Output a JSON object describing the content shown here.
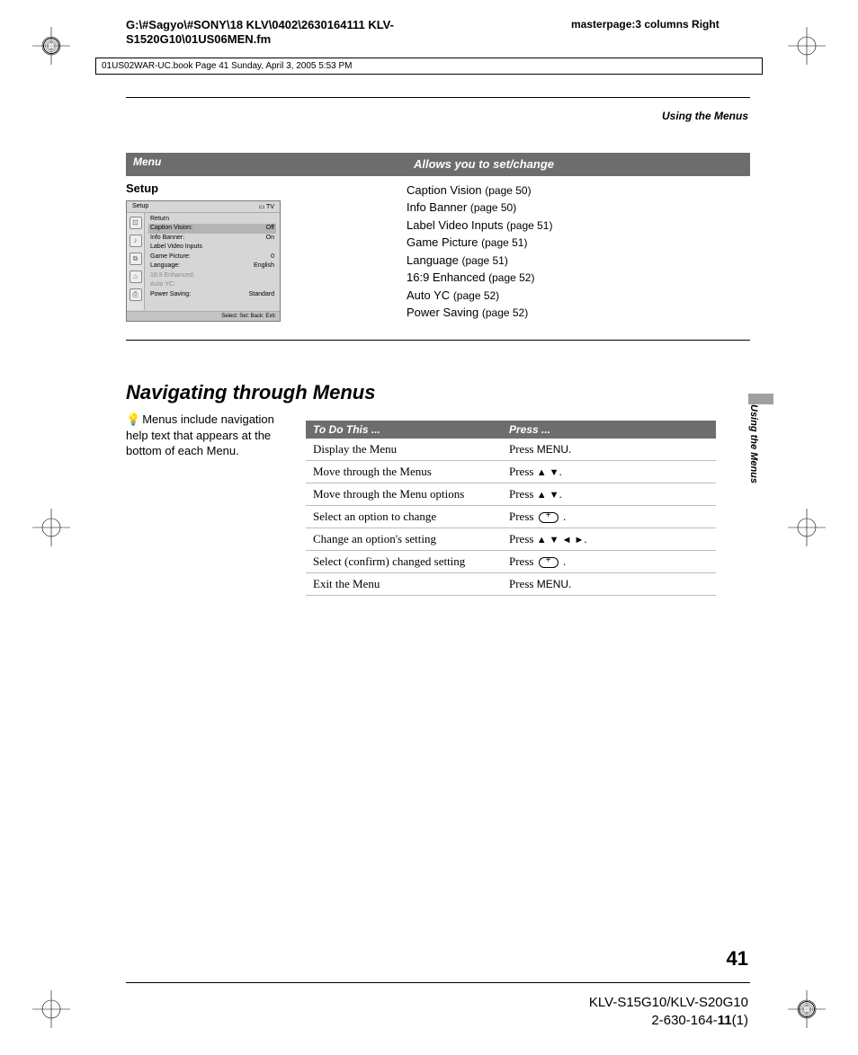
{
  "header": {
    "filepath": "G:\\#Sagyo\\#SONY\\18 KLV\\0402\\2630164111 KLV-S1520G10\\01US06MEN.fm",
    "masterpage": "masterpage:3 columns Right",
    "bookmeta": "01US02WAR-UC.book  Page 41  Sunday, April 3, 2005  5:53 PM"
  },
  "section_label": "Using the Menus",
  "table1": {
    "headers": {
      "c1": "Menu",
      "c2": "Allows you to set/change"
    },
    "setup_label": "Setup",
    "items": [
      {
        "name": "Caption Vision",
        "page": "(page 50)"
      },
      {
        "name": "Info Banner",
        "page": "(page 50)"
      },
      {
        "name": "Label Video Inputs",
        "page": "(page 51)"
      },
      {
        "name": "Game Picture",
        "page": "(page 51)"
      },
      {
        "name": "Language",
        "page": "(page 51)"
      },
      {
        "name": "16:9 Enhanced",
        "page": "(page 52)"
      },
      {
        "name": "Auto YC",
        "page": "(page 52)"
      },
      {
        "name": "Power Saving",
        "page": "(page 52)"
      }
    ]
  },
  "osd": {
    "title_left": "Setup",
    "title_right": "TV",
    "lines": [
      {
        "label": "Return",
        "value": "",
        "sel": false,
        "dim": false
      },
      {
        "label": "Caption  Vision:",
        "value": "Off",
        "sel": true,
        "dim": false
      },
      {
        "label": "Info  Banner:",
        "value": "On",
        "sel": false,
        "dim": false
      },
      {
        "label": "Label  Video  Inputs",
        "value": "",
        "sel": false,
        "dim": false
      },
      {
        "label": "Game Picture:",
        "value": "0",
        "sel": false,
        "dim": false
      },
      {
        "label": "Language:",
        "value": "English",
        "sel": false,
        "dim": false
      },
      {
        "label": "16:9 Enhanced:",
        "value": "",
        "sel": false,
        "dim": true
      },
      {
        "label": "Auto  YC:",
        "value": "",
        "sel": false,
        "dim": true
      },
      {
        "label": "Power  Saving:",
        "value": "Standard",
        "sel": false,
        "dim": false
      }
    ],
    "footer": "Select:      Set:     Back:     Exit:    "
  },
  "h2": "Navigating through Menus",
  "tip": "Menus include navigation help text that appears at the bottom of each Menu.",
  "table2": {
    "headers": {
      "c1": "To Do This ...",
      "c2": "Press ..."
    },
    "rows": [
      {
        "action": "Display the Menu",
        "press_pre": "Press ",
        "press_key": "MENU",
        "press_post": ".",
        "icons": ""
      },
      {
        "action": "Move through the Menus",
        "press_pre": "Press ",
        "press_key": "",
        "press_post": ".",
        "icons": "ud"
      },
      {
        "action": "Move through the Menu options",
        "press_pre": "Press ",
        "press_key": "",
        "press_post": ".",
        "icons": "ud"
      },
      {
        "action": "Select an option to change",
        "press_pre": "Press  ",
        "press_key": "",
        "press_post": " .",
        "icons": "enter"
      },
      {
        "action": "Change an option's setting",
        "press_pre": "Press ",
        "press_key": "",
        "press_post": ".",
        "icons": "udlr"
      },
      {
        "action": "Select (confirm) changed setting",
        "press_pre": "Press  ",
        "press_key": "",
        "press_post": " .",
        "icons": "enter"
      },
      {
        "action": "Exit the Menu",
        "press_pre": "Press ",
        "press_key": "MENU",
        "press_post": ".",
        "icons": ""
      }
    ]
  },
  "sidetab": "Using the Menus",
  "pagenum": "41",
  "footer": {
    "model": "KLV-S15G10/KLV-S20G10",
    "partno_pre": "2-630-164-",
    "partno_bold": "11",
    "partno_post": "(1)"
  },
  "colors": {
    "header_bg": "#6d6d6d",
    "header_fg": "#ffffff",
    "rule": "#000000",
    "row_border": "#bdbdbd",
    "osd_bg": "#d6d6d6",
    "sidebar_tab": "#a0a0a0"
  }
}
